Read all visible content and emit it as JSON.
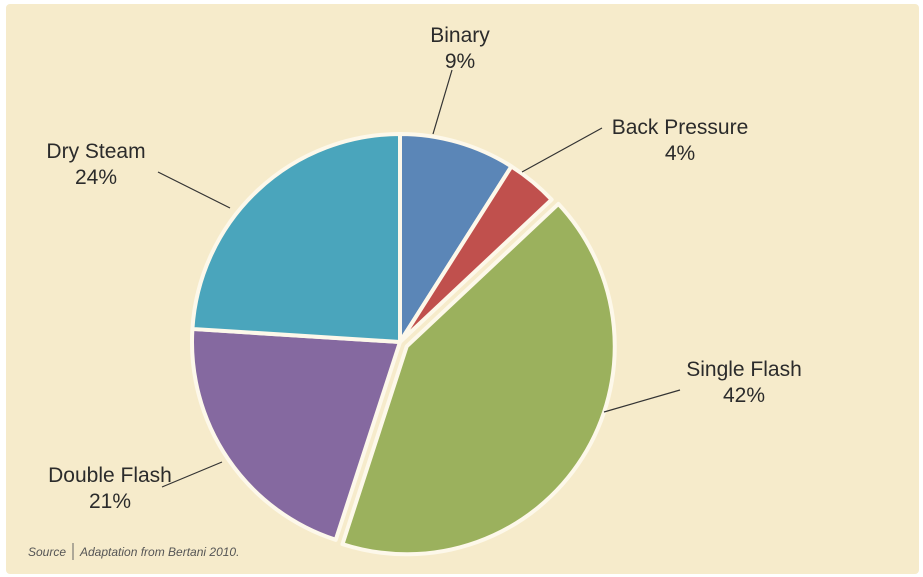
{
  "chart_data": {
    "type": "pie",
    "title": "",
    "slices": [
      {
        "label": "Binary",
        "pct_label": "9%",
        "value": 9,
        "color": "#5b86b7"
      },
      {
        "label": "Back Pressure",
        "pct_label": "4%",
        "value": 4,
        "color": "#c0504d"
      },
      {
        "label": "Single Flash",
        "pct_label": "42%",
        "value": 42,
        "color": "#9bb15d"
      },
      {
        "label": "Double Flash",
        "pct_label": "21%",
        "value": 21,
        "color": "#8569a0"
      },
      {
        "label": "Dry Steam",
        "pct_label": "24%",
        "value": 24,
        "color": "#4aa5bc"
      }
    ],
    "source_prefix": "Source",
    "source_text": "Adaptation from Bertani 2010."
  },
  "colors": {
    "background": "#f6ebcb",
    "slice_border": "#fdf8ea"
  }
}
